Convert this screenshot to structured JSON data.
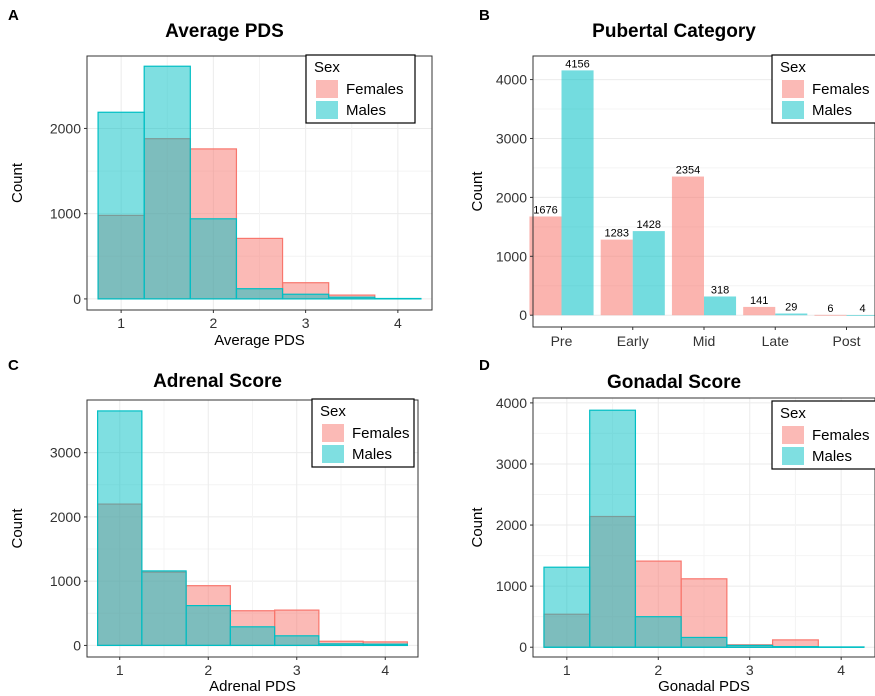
{
  "colors": {
    "females": "#F8766D",
    "males": "#00BFC4"
  },
  "chart_data": [
    {
      "id": "A",
      "letter": "A",
      "type": "bar",
      "title": "Average PDS",
      "xlabel": "Average PDS",
      "ylabel": "Count",
      "xlim": [
        0.63,
        4.37
      ],
      "ylim": [
        -130,
        2850
      ],
      "xticks": [
        1,
        2,
        3,
        4
      ],
      "yticks": [
        0,
        1000,
        2000
      ],
      "grid": true,
      "legend": {
        "title": "Sex",
        "entries": [
          "Females",
          "Males"
        ],
        "position": "top-right"
      },
      "bin_edges": [
        0.75,
        1.25,
        1.75,
        2.25,
        2.75,
        3.25,
        3.75,
        4.25
      ],
      "series": [
        {
          "name": "Females",
          "values": [
            980,
            1880,
            1760,
            710,
            190,
            45,
            0
          ]
        },
        {
          "name": "Males",
          "values": [
            2190,
            2730,
            940,
            120,
            55,
            20,
            5
          ]
        }
      ]
    },
    {
      "id": "B",
      "letter": "B",
      "type": "bar",
      "title": "Pubertal Category",
      "xlabel": "",
      "ylabel": "Count",
      "categories": [
        "Pre",
        "Early",
        "Mid",
        "Late",
        "Post"
      ],
      "ylim": [
        -200,
        4400
      ],
      "yticks": [
        0,
        1000,
        2000,
        3000,
        4000
      ],
      "grid": true,
      "legend": {
        "title": "Sex",
        "entries": [
          "Females",
          "Males"
        ],
        "position": "top-right"
      },
      "series": [
        {
          "name": "Females",
          "values": [
            1676,
            1283,
            2354,
            141,
            6
          ]
        },
        {
          "name": "Males",
          "values": [
            4156,
            1428,
            318,
            29,
            4
          ]
        }
      ],
      "value_labels": {
        "Females": [
          "1676",
          "1283",
          "2354",
          "141",
          "6"
        ],
        "Males": [
          "4156",
          "1428",
          "318",
          "29",
          "4"
        ]
      }
    },
    {
      "id": "C",
      "letter": "C",
      "type": "bar",
      "title": "Adrenal Score",
      "xlabel": "Adrenal PDS",
      "ylabel": "Count",
      "xlim": [
        0.63,
        4.37
      ],
      "ylim": [
        -180,
        3820
      ],
      "xticks": [
        1,
        2,
        3,
        4
      ],
      "yticks": [
        0,
        1000,
        2000,
        3000
      ],
      "grid": true,
      "legend": {
        "title": "Sex",
        "entries": [
          "Females",
          "Males"
        ],
        "position": "top-right"
      },
      "bin_edges": [
        0.75,
        1.25,
        1.75,
        2.25,
        2.75,
        3.25,
        3.75,
        4.25
      ],
      "series": [
        {
          "name": "Females",
          "values": [
            2200,
            1140,
            930,
            540,
            550,
            65,
            55
          ]
        },
        {
          "name": "Males",
          "values": [
            3650,
            1160,
            620,
            290,
            150,
            25,
            20
          ]
        }
      ]
    },
    {
      "id": "D",
      "letter": "D",
      "type": "bar",
      "title": "Gonadal Score",
      "xlabel": "Gonadal PDS",
      "ylabel": "Count",
      "xlim": [
        0.63,
        4.37
      ],
      "ylim": [
        -160,
        4080
      ],
      "xticks": [
        1,
        2,
        3,
        4
      ],
      "yticks": [
        0,
        1000,
        2000,
        3000,
        4000
      ],
      "grid": true,
      "legend": {
        "title": "Sex",
        "entries": [
          "Females",
          "Males"
        ],
        "position": "top-right"
      },
      "bin_edges": [
        0.75,
        1.25,
        1.75,
        2.25,
        2.75,
        3.25,
        3.75,
        4.25
      ],
      "series": [
        {
          "name": "Females",
          "values": [
            540,
            2140,
            1410,
            1120,
            40,
            120,
            0
          ]
        },
        {
          "name": "Males",
          "values": [
            1310,
            3880,
            500,
            160,
            30,
            10,
            5
          ]
        }
      ]
    }
  ]
}
